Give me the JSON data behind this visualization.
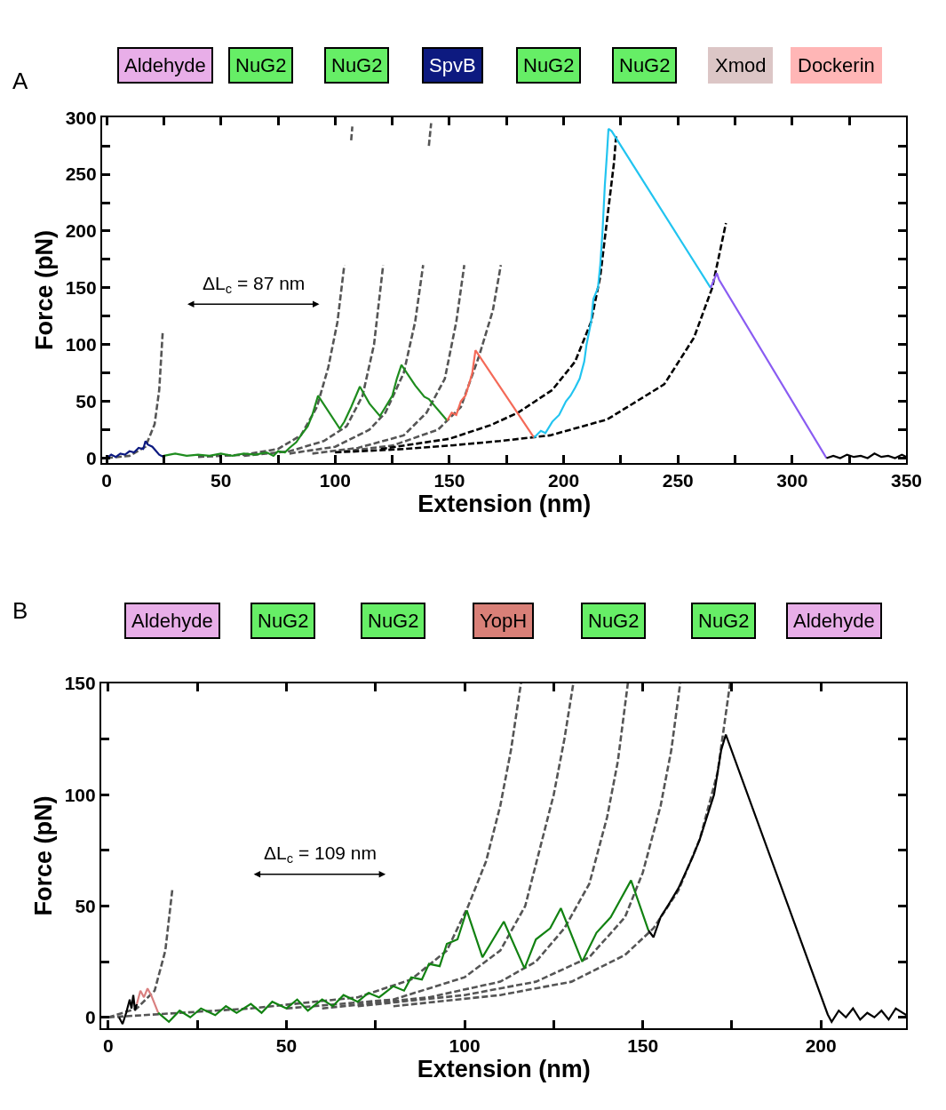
{
  "chart_data": [
    {
      "type": "line",
      "xlabel": "Extension (nm)",
      "ylabel": "Force (pN)",
      "xlim": [
        -2,
        350
      ],
      "ylim": [
        -4,
        300
      ],
      "xticks": [
        0,
        {
          "value": 25,
          "label": null
        },
        50,
        {
          "value": 75,
          "label": null
        },
        100,
        {
          "value": 125,
          "label": null
        },
        150,
        {
          "value": 175,
          "label": null
        },
        200,
        {
          "value": 225,
          "label": null
        },
        250,
        {
          "value": 275,
          "label": null
        },
        300,
        {
          "value": 325,
          "label": null
        },
        350
      ],
      "yticks": [
        0,
        {
          "value": 25,
          "label": null
        },
        50,
        {
          "value": 75,
          "label": null
        },
        100,
        {
          "value": 125,
          "label": null
        },
        150,
        {
          "value": 175,
          "label": null
        },
        200,
        {
          "value": 225,
          "label": null
        },
        250,
        {
          "value": 275,
          "label": null
        },
        300
      ],
      "marker": "none",
      "annotations": [
        "A",
        "Aldehyde",
        "NuG2",
        "NuG2",
        "SpvB",
        "NuG2",
        "NuG2",
        "Xmod",
        "Dockerin",
        "ΔL$_{c}$ = 87 nm"
      ],
      "series": [
        {
          "color": "#555555",
          "line_style": "dashed",
          "x": [
            0,
            10,
            17,
            21,
            23,
            24.5
          ],
          "values": [
            0,
            2,
            10,
            30,
            60,
            110
          ]
        },
        {
          "color": "#555555",
          "line_style": "dashed",
          "x": [
            40,
            60,
            75,
            85,
            92,
            97,
            101,
            104,
            null,
            107,
            107.5
          ],
          "values": [
            1,
            3,
            8,
            20,
            45,
            80,
            120,
            170,
            null,
            280,
            292
          ]
        },
        {
          "color": "#555555",
          "line_style": "dashed",
          "x": [
            60,
            80,
            95,
            105,
            112,
            117,
            121
          ],
          "values": [
            2,
            6,
            15,
            28,
            55,
            100,
            170
          ]
        },
        {
          "color": "#555555",
          "line_style": "dashed",
          "x": [
            80,
            100,
            115,
            122,
            130,
            135,
            138.5,
            null,
            141,
            142
          ],
          "values": [
            4,
            10,
            25,
            40,
            75,
            120,
            170,
            null,
            275,
            295
          ]
        },
        {
          "color": "#555555",
          "line_style": "dashed",
          "x": [
            90,
            110,
            130,
            140,
            148,
            153,
            156.5
          ],
          "values": [
            4,
            9,
            20,
            40,
            70,
            120,
            170
          ]
        },
        {
          "color": "#555555",
          "line_style": "dashed",
          "x": [
            100,
            125,
            145,
            155,
            163,
            169,
            172.5
          ],
          "values": [
            5,
            11,
            25,
            45,
            90,
            130,
            170
          ]
        },
        {
          "color": "#000000",
          "line_style": "dashed",
          "x": [
            120,
            150,
            168,
            180,
            195,
            205,
            212,
            216,
            219,
            222,
            223
          ],
          "values": [
            8,
            17,
            29,
            40,
            60,
            85,
            120,
            160,
            210,
            260,
            285
          ]
        },
        {
          "color": "#000000",
          "line_style": "dashed",
          "x": [
            100,
            130,
            150,
            172,
            194,
            219,
            244,
            257,
            265,
            271
          ],
          "values": [
            5,
            8,
            11,
            15,
            20,
            34,
            65,
            106,
            150,
            207
          ]
        },
        {
          "color": "#0d1a80",
          "line_style": "solid",
          "x": [
            0,
            2,
            4,
            6,
            8,
            10,
            12,
            14,
            16,
            17,
            18,
            20,
            23,
            25
          ],
          "values": [
            0,
            3,
            1,
            4,
            3,
            6,
            5,
            9,
            8,
            15,
            12,
            10,
            3,
            1
          ]
        },
        {
          "color": "#1e8c1e",
          "line_style": "solid",
          "x": [
            25,
            30,
            35,
            40,
            45,
            50,
            55,
            60,
            65,
            70,
            73,
            75,
            78,
            80,
            83,
            85,
            88,
            90,
            92.5,
            102,
            104,
            107,
            110.8,
            115,
            119.6,
            122,
            125,
            127,
            129,
            135,
            139,
            141,
            149
          ],
          "values": [
            2,
            4,
            2,
            3,
            2,
            4,
            2,
            4,
            3,
            5,
            2,
            6,
            5,
            9,
            14,
            20,
            28,
            38,
            55,
            26,
            32,
            45,
            63,
            48,
            37,
            45,
            55,
            70,
            82,
            64,
            54,
            52,
            33
          ]
        },
        {
          "color": "#f46a58",
          "line_style": "solid",
          "x": [
            149,
            151,
            153,
            155,
            157,
            159,
            160,
            161.4,
            187
          ],
          "values": [
            33,
            40,
            38,
            50,
            55,
            68,
            75,
            95,
            18
          ]
        },
        {
          "color": "#22c4f0",
          "line_style": "solid",
          "x": [
            187,
            190,
            192,
            195,
            198,
            201,
            203,
            205,
            207,
            209,
            210,
            212,
            213,
            215,
            216,
            217,
            218,
            219,
            219.6,
            221,
            264.3
          ],
          "values": [
            18,
            24,
            22,
            32,
            38,
            50,
            55,
            62,
            70,
            85,
            100,
            120,
            140,
            150,
            170,
            200,
            240,
            270,
            290,
            288,
            150
          ]
        },
        {
          "color": "#8a5cf2",
          "line_style": "solid",
          "x": [
            264.3,
            266,
            267,
            268,
            315
          ],
          "values": [
            150,
            158,
            163,
            157,
            0
          ]
        },
        {
          "color": "#000000",
          "line_style": "solid",
          "x": [
            315,
            318,
            321,
            324,
            327,
            330,
            333,
            336,
            339,
            342,
            345,
            348,
            350
          ],
          "values": [
            0,
            2,
            0,
            3,
            1,
            2,
            0,
            4,
            1,
            2,
            0,
            3,
            1
          ]
        }
      ]
    },
    {
      "type": "line",
      "xlabel": "Extension (nm)",
      "ylabel": "Force (pN)",
      "xlim": [
        -2,
        224
      ],
      "ylim": [
        -5,
        150
      ],
      "xticks": [
        0,
        {
          "value": 25,
          "label": null
        },
        50,
        {
          "value": 75,
          "label": null
        },
        100,
        {
          "value": 125,
          "label": null
        },
        150,
        {
          "value": 175,
          "label": null
        },
        200
      ],
      "yticks": [
        0,
        {
          "value": 25,
          "label": null
        },
        50,
        {
          "value": 75,
          "label": null
        },
        100,
        {
          "value": 125,
          "label": null
        },
        150
      ],
      "marker": "none",
      "annotations": [
        "B",
        "Aldehyde",
        "NuG2",
        "NuG2",
        "YopH",
        "NuG2",
        "NuG2",
        "Aldehyde",
        "ΔL$_{c}$ = 109 nm"
      ],
      "series": [
        {
          "color": "#555555",
          "line_style": "dashed",
          "x": [
            0,
            8,
            13,
            16,
            18
          ],
          "values": [
            0,
            4,
            12,
            30,
            58
          ]
        },
        {
          "color": "#555555",
          "line_style": "dashed",
          "x": [
            0,
            40,
            70,
            85,
            95,
            101,
            106,
            110,
            113,
            115.8
          ],
          "values": [
            0,
            4,
            9,
            17,
            30,
            50,
            70,
            95,
            120,
            150
          ]
        },
        {
          "color": "#555555",
          "line_style": "dashed",
          "x": [
            50,
            80,
            100,
            110,
            117,
            121,
            125,
            128,
            130.5
          ],
          "values": [
            4,
            8,
            18,
            30,
            50,
            75,
            100,
            125,
            150
          ]
        },
        {
          "color": "#555555",
          "line_style": "dashed",
          "x": [
            60,
            90,
            110,
            120,
            128,
            135,
            140,
            143,
            145.8
          ],
          "values": [
            4,
            9,
            16,
            25,
            40,
            60,
            90,
            115,
            150
          ]
        },
        {
          "color": "#555555",
          "line_style": "dashed",
          "x": [
            70,
            100,
            120,
            135,
            145,
            150,
            155,
            158,
            160.5
          ],
          "values": [
            5,
            10,
            16,
            27,
            45,
            65,
            95,
            120,
            150
          ]
        },
        {
          "color": "#555555",
          "line_style": "dashed",
          "x": [
            80,
            110,
            130,
            145,
            153,
            160,
            166,
            171,
            174.5
          ],
          "values": [
            5,
            10,
            16,
            28,
            40,
            57,
            80,
            110,
            150
          ]
        },
        {
          "color": "#000000",
          "line_style": "solid",
          "x": [
            3,
            4,
            5,
            6,
            6.5,
            7,
            7.5,
            8
          ],
          "values": [
            0,
            -3,
            2,
            8,
            4,
            10,
            3,
            6
          ]
        },
        {
          "color": "#d98080",
          "line_style": "solid",
          "x": [
            8,
            9,
            10,
            11,
            12,
            13,
            14
          ],
          "values": [
            6,
            12,
            9,
            13,
            10,
            6,
            2
          ]
        },
        {
          "color": "#128212",
          "line_style": "solid",
          "x": [
            14,
            17,
            20,
            23,
            26,
            30,
            33,
            36,
            40,
            43,
            46,
            50,
            53,
            56,
            60,
            63,
            66,
            70,
            73,
            76,
            80,
            83,
            85,
            88,
            90,
            93,
            95,
            98,
            100.6,
            105,
            108,
            111,
            116.8,
            120,
            124,
            127,
            133,
            137,
            141,
            146.7,
            151.6
          ],
          "values": [
            2,
            -2,
            3,
            0,
            4,
            1,
            5,
            2,
            6,
            2,
            7,
            4,
            8,
            3,
            8,
            5,
            10,
            7,
            11,
            9,
            14,
            12,
            18,
            17,
            24,
            23,
            33,
            35,
            48,
            27,
            35,
            43,
            22,
            35,
            40,
            49,
            25,
            38,
            45,
            61.5,
            39
          ]
        },
        {
          "color": "#000000",
          "line_style": "solid",
          "x": [
            151.6,
            153,
            155,
            157,
            160,
            162,
            164,
            166,
            168,
            170,
            171,
            172,
            173.3,
            201.9,
            203,
            205,
            207,
            209,
            211,
            213,
            215,
            217,
            219,
            221,
            224
          ],
          "values": [
            39,
            36,
            45,
            50,
            58,
            65,
            72,
            80,
            90,
            100,
            110,
            120,
            127,
            1.3,
            -2,
            3,
            0,
            4,
            -1,
            2,
            0,
            3,
            -1,
            4,
            1
          ]
        }
      ]
    }
  ]
}
